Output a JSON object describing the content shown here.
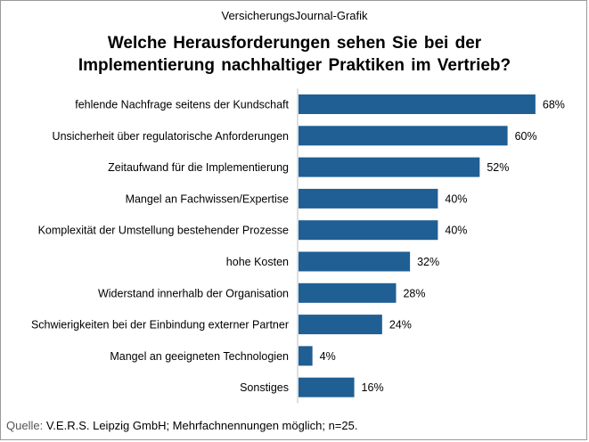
{
  "header": {
    "source_label": "VersicherungsJournal-Grafik",
    "title_line1": "Welche Herausforderungen  sehen Sie bei der",
    "title_line2": "Implementierung  nachhaltiger  Praktiken  im Vertrieb?"
  },
  "footer": {
    "quelle_label": "Quelle:",
    "text": "V.E.R.S. Leipzig GmbH; Mehrfachnennungen  möglich; n=25."
  },
  "chart_data": {
    "type": "bar",
    "orientation": "horizontal",
    "title": "Welche Herausforderungen sehen Sie bei der Implementierung nachhaltiger Praktiken im Vertrieb?",
    "categories": [
      "fehlende Nachfrage seitens der Kundschaft",
      "Unsicherheit über regulatorische Anforderungen",
      "Zeitaufwand für die Implementierung",
      "Mangel an Fachwissen/Expertise",
      "Komplexität der Umstellung bestehender Prozesse",
      "hohe Kosten",
      "Widerstand innerhalb der Organisation",
      "Schwierigkeiten bei der Einbindung externer Partner",
      "Mangel an geeigneten Technologien",
      "Sonstiges"
    ],
    "values": [
      68,
      60,
      52,
      40,
      40,
      32,
      28,
      24,
      4,
      16
    ],
    "value_labels": [
      "68%",
      "60%",
      "52%",
      "40%",
      "40%",
      "32%",
      "28%",
      "24%",
      "4%",
      "16%"
    ],
    "unit": "%",
    "xlim": [
      0,
      100
    ],
    "grid": false,
    "bar_color": "#1f5f94"
  }
}
